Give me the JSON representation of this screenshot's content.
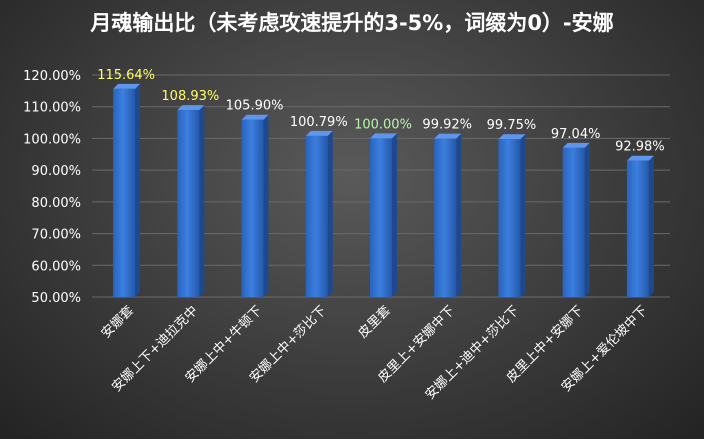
{
  "chart_data": {
    "type": "bar",
    "title": "月魂输出比（未考虑攻速提升的3-5%，词缀为0）-安娜",
    "categories": [
      "安娜套",
      "安娜上下+迪拉克中",
      "安娜上中+牛顿下",
      "安娜上中+莎比下",
      "皮里套",
      "皮里上+安娜中下",
      "安娜上+迪中+莎比下",
      "皮里上中+安娜下",
      "安娜上+爱伦坡中下"
    ],
    "values": [
      115.64,
      108.93,
      105.9,
      100.79,
      100.0,
      99.92,
      99.75,
      97.04,
      92.98
    ],
    "data_labels": [
      "115.64%",
      "108.93%",
      "105.90%",
      "100.79%",
      "100.00%",
      "99.92%",
      "99.75%",
      "97.04%",
      "92.98%"
    ],
    "label_colors": [
      "#ffff66",
      "#ffff66",
      "#ffffff",
      "#ffffff",
      "#b6f5a8",
      "#ffffff",
      "#ffffff",
      "#ffffff",
      "#ffffff"
    ],
    "bar_color": "#2f6fd0",
    "ylim": [
      50,
      120
    ],
    "yticks": [
      "50.00%",
      "60.00%",
      "70.00%",
      "80.00%",
      "90.00%",
      "100.00%",
      "110.00%",
      "120.00%"
    ],
    "grid": true,
    "xlabel": "",
    "ylabel": ""
  }
}
